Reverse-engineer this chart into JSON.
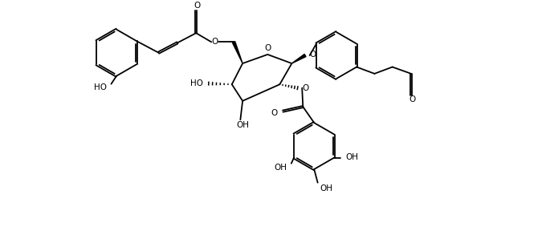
{
  "bg": "#ffffff",
  "lc": "#000000",
  "lw": 1.3,
  "figsize": [
    6.8,
    2.98
  ],
  "dpi": 100,
  "xlim": [
    -4.6,
    5.4
  ],
  "ylim": [
    -3.1,
    2.2
  ]
}
